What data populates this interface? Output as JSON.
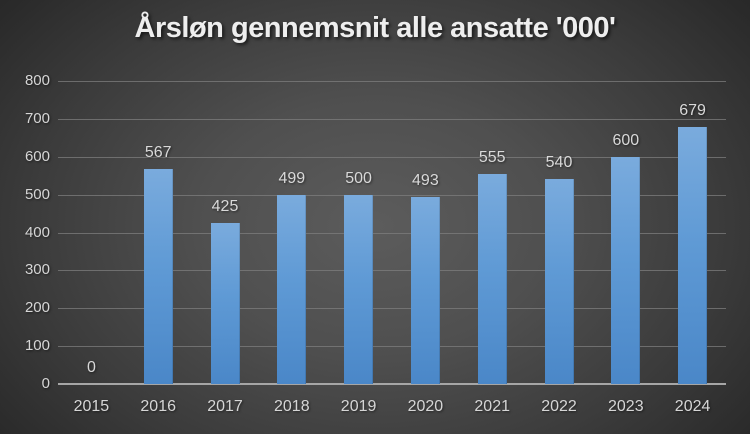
{
  "chart_data": {
    "type": "bar",
    "title": "Årsløn gennemsnit alle ansatte '000'",
    "categories": [
      "2015",
      "2016",
      "2017",
      "2018",
      "2019",
      "2020",
      "2021",
      "2022",
      "2023",
      "2024"
    ],
    "values": [
      0,
      567,
      425,
      499,
      500,
      493,
      555,
      540,
      600,
      679
    ],
    "xlabel": "",
    "ylabel": "",
    "ylim": [
      0,
      800
    ],
    "ytick_step": 100,
    "ytick_labels": [
      "0",
      "100",
      "200",
      "300",
      "400",
      "500",
      "600",
      "700",
      "800"
    ],
    "grid": true,
    "legend": "none",
    "data_labels": true,
    "bar_orientation": "vertical"
  },
  "colors": {
    "bar_top": "#7aabdd",
    "bar_bottom": "#4a87c8",
    "background_center": "#5c5c5c",
    "background_edge": "#222222",
    "gridline": "#7d7d7d",
    "axis_line": "#a6a6a6",
    "tick_label_text": "#d6d6d6",
    "title_text": "#eeeeee"
  }
}
